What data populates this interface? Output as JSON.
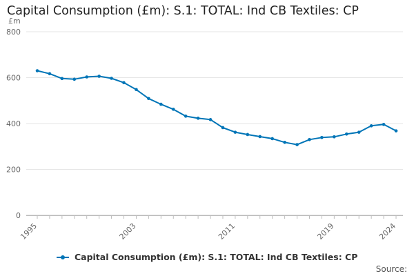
{
  "chart_data": {
    "type": "line",
    "title": "Capital Consumption (£m): S.1: TOTAL: Ind CB Textiles: CP",
    "ylabel": "£m",
    "xlabel": "",
    "ylim": [
      0,
      800
    ],
    "yticks": [
      0,
      200,
      400,
      600,
      800
    ],
    "xticks": [
      1995,
      2003,
      2011,
      2019,
      2024
    ],
    "grid": true,
    "legend_position": "bottom",
    "series": [
      {
        "name": "Capital Consumption (£m): S.1: TOTAL: Ind CB Textiles: CP",
        "color": "#0075b7",
        "x": [
          1995,
          1996,
          1997,
          1998,
          1999,
          2000,
          2001,
          2002,
          2003,
          2004,
          2005,
          2006,
          2007,
          2008,
          2009,
          2010,
          2011,
          2012,
          2013,
          2014,
          2015,
          2016,
          2017,
          2018,
          2019,
          2020,
          2021,
          2022,
          2023,
          2024
        ],
        "y": [
          630,
          617,
          596,
          593,
          603,
          606,
          597,
          578,
          548,
          509,
          484,
          462,
          432,
          423,
          417,
          382,
          362,
          352,
          343,
          334,
          318,
          308,
          330,
          339,
          342,
          354,
          362,
          390,
          396,
          368
        ]
      }
    ]
  },
  "source_label": "Source:"
}
